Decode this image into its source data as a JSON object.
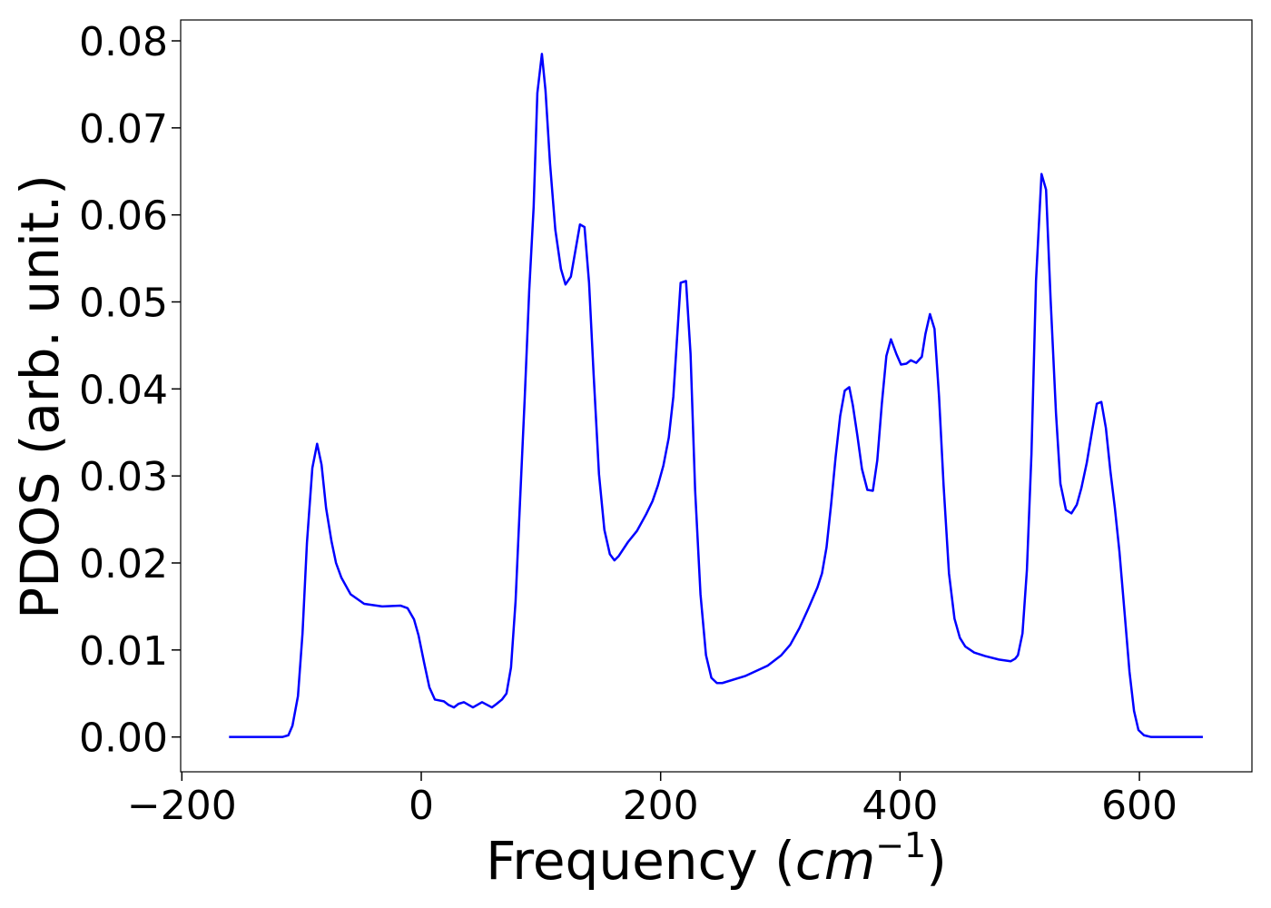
{
  "chart_data": {
    "type": "line",
    "xlabel": [
      "Frequency (",
      "cm",
      "−1",
      ")"
    ],
    "ylabel": "PDOS (arb. unit.)",
    "xlim": [
      -201,
      694
    ],
    "ylim": [
      -0.004,
      0.0824
    ],
    "xticks": [
      {
        "value": -200,
        "label": "−200"
      },
      0,
      200,
      400,
      600
    ],
    "yticks": [
      {
        "value": 0,
        "label": "0.00"
      },
      0.01,
      0.02,
      0.03,
      0.04,
      0.05,
      0.06,
      0.07,
      0.08
    ],
    "grid": false,
    "series": [
      {
        "color": "#0000ff",
        "x": [
          -160.6,
          -116,
          -111,
          -107.6,
          -103,
          -99.2,
          -95.5,
          -91,
          -87,
          -83.3,
          -79.5,
          -75,
          -71.2,
          -66.7,
          -59,
          -47.7,
          -32.6,
          -17.4,
          -11.4,
          -6,
          -2.3,
          2.3,
          6.8,
          11.4,
          18.9,
          22.7,
          27.3,
          31,
          35.6,
          43.2,
          50.8,
          59,
          62.9,
          67.4,
          71.2,
          75,
          78.8,
          82.6,
          86.4,
          90.2,
          93.9,
          97,
          100.8,
          103.8,
          107.6,
          112,
          116.7,
          120.5,
          125,
          128.8,
          132.6,
          136.4,
          140.2,
          144,
          148.5,
          153,
          157.6,
          161.4,
          165,
          172.7,
          180.3,
          187.9,
          193.2,
          197.7,
          202.3,
          206.8,
          210.6,
          213.6,
          216.7,
          221.2,
          225,
          228.8,
          233.3,
          237.9,
          242.4,
          247,
          251.5,
          270.5,
          289.4,
          300.8,
          308.3,
          315.9,
          323.5,
          331,
          334.8,
          338.6,
          342.4,
          346.2,
          350,
          353.8,
          357.6,
          360.6,
          364.4,
          368.2,
          372.7,
          377.3,
          381,
          384.8,
          388.6,
          392.4,
          397,
          400.8,
          405.3,
          409,
          413.6,
          418.2,
          421.2,
          425,
          428.8,
          432.6,
          436.4,
          440.9,
          445.5,
          450,
          454.5,
          462,
          471.2,
          482.6,
          492.4,
          496.2,
          498.5,
          502.3,
          506,
          509.8,
          513.6,
          518.2,
          522,
          525.8,
          530.3,
          534,
          538.6,
          543.2,
          547.7,
          551.5,
          556,
          560.6,
          564.4,
          568.2,
          572,
          575.8,
          579.5,
          583.3,
          587.9,
          591.7,
          595.5,
          599.2,
          603.8,
          609.8,
          653
        ],
        "values": [
          0,
          0,
          0.0002,
          0.0013,
          0.0047,
          0.0119,
          0.0223,
          0.0309,
          0.0337,
          0.0313,
          0.0263,
          0.0225,
          0.02,
          0.0183,
          0.0164,
          0.0153,
          0.015,
          0.0151,
          0.0148,
          0.0135,
          0.0117,
          0.0086,
          0.0057,
          0.0043,
          0.0041,
          0.0037,
          0.0034,
          0.0038,
          0.004,
          0.0034,
          0.004,
          0.0034,
          0.0038,
          0.0043,
          0.005,
          0.008,
          0.0156,
          0.0273,
          0.0388,
          0.0513,
          0.0609,
          0.074,
          0.0785,
          0.0743,
          0.0659,
          0.0583,
          0.0538,
          0.052,
          0.0529,
          0.0559,
          0.0589,
          0.0586,
          0.0522,
          0.0417,
          0.0302,
          0.0238,
          0.021,
          0.0203,
          0.0208,
          0.0224,
          0.0237,
          0.0256,
          0.0271,
          0.0289,
          0.0312,
          0.0344,
          0.0391,
          0.0456,
          0.0522,
          0.0524,
          0.044,
          0.0284,
          0.0164,
          0.0094,
          0.0068,
          0.0062,
          0.0062,
          0.007,
          0.0082,
          0.0094,
          0.0106,
          0.0125,
          0.0148,
          0.0172,
          0.0188,
          0.0218,
          0.0267,
          0.0322,
          0.0369,
          0.0398,
          0.0402,
          0.0381,
          0.0346,
          0.0308,
          0.0284,
          0.0283,
          0.0318,
          0.0383,
          0.0438,
          0.0457,
          0.044,
          0.0428,
          0.0429,
          0.0433,
          0.043,
          0.0437,
          0.0463,
          0.0486,
          0.0469,
          0.0391,
          0.0289,
          0.0188,
          0.0136,
          0.0114,
          0.0104,
          0.0097,
          0.0093,
          0.0089,
          0.0087,
          0.009,
          0.0094,
          0.0119,
          0.0192,
          0.0325,
          0.0524,
          0.0647,
          0.0629,
          0.0503,
          0.0372,
          0.0291,
          0.0261,
          0.0257,
          0.0267,
          0.0286,
          0.0315,
          0.0353,
          0.0383,
          0.0385,
          0.0355,
          0.0305,
          0.0263,
          0.0213,
          0.0138,
          0.0075,
          0.003,
          0.0008,
          0.0002,
          0,
          0
        ]
      }
    ]
  }
}
